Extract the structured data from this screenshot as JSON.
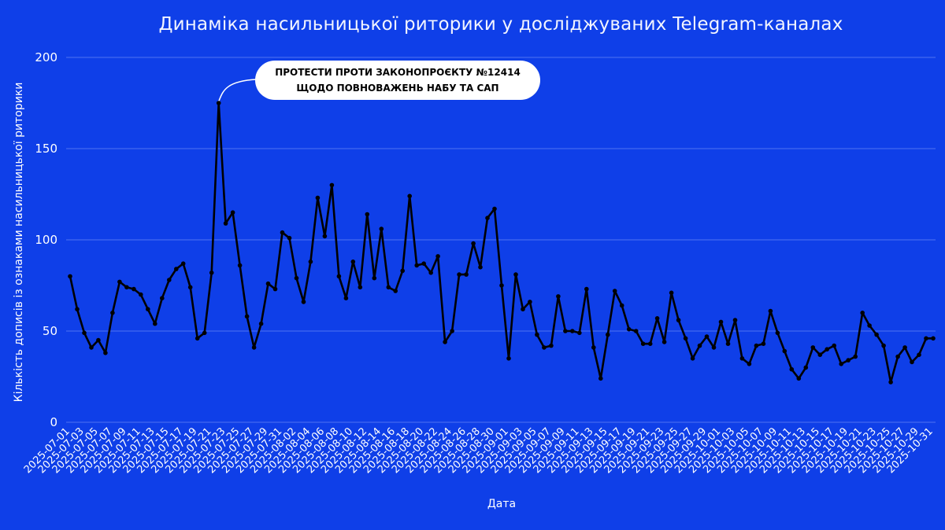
{
  "chart_data": {
    "type": "line",
    "title": "Динаміка насильницької риторики у досліджуваних Telegram-каналах",
    "xlabel": "Дата",
    "ylabel": "Кількість дописів із ознаками насильницької риторики",
    "ylim": [
      0,
      200
    ],
    "yticks": [
      0,
      50,
      100,
      150,
      200
    ],
    "grid": true,
    "series_color": "#000000",
    "background_color": "#0f3fe8",
    "annotation": {
      "line1": "ПРОТЕСТИ ПРОТИ ЗАКОНОПРОЄКТУ №12414",
      "line2": "ЩОДО ПОВНОВАЖЕНЬ НАБУ ТА САП",
      "date": "2025-07-22",
      "value": 175
    },
    "x": [
      "2025-07-01",
      "2025-07-02",
      "2025-07-03",
      "2025-07-04",
      "2025-07-05",
      "2025-07-06",
      "2025-07-07",
      "2025-07-08",
      "2025-07-09",
      "2025-07-10",
      "2025-07-11",
      "2025-07-12",
      "2025-07-13",
      "2025-07-14",
      "2025-07-15",
      "2025-07-16",
      "2025-07-17",
      "2025-07-18",
      "2025-07-19",
      "2025-07-20",
      "2025-07-21",
      "2025-07-22",
      "2025-07-23",
      "2025-07-24",
      "2025-07-25",
      "2025-07-26",
      "2025-07-27",
      "2025-07-28",
      "2025-07-29",
      "2025-07-30",
      "2025-07-31",
      "2025-08-01",
      "2025-08-02",
      "2025-08-03",
      "2025-08-04",
      "2025-08-05",
      "2025-08-06",
      "2025-08-07",
      "2025-08-08",
      "2025-08-09",
      "2025-08-10",
      "2025-08-11",
      "2025-08-12",
      "2025-08-13",
      "2025-08-14",
      "2025-08-15",
      "2025-08-16",
      "2025-08-17",
      "2025-08-18",
      "2025-08-19",
      "2025-08-20",
      "2025-08-21",
      "2025-08-22",
      "2025-08-23",
      "2025-08-24",
      "2025-08-25",
      "2025-08-26",
      "2025-08-27",
      "2025-08-28",
      "2025-08-29",
      "2025-08-30",
      "2025-08-31",
      "2025-09-01",
      "2025-09-02",
      "2025-09-03",
      "2025-09-04",
      "2025-09-05",
      "2025-09-06",
      "2025-09-07",
      "2025-09-08",
      "2025-09-09",
      "2025-09-10",
      "2025-09-11",
      "2025-09-12",
      "2025-09-13",
      "2025-09-14",
      "2025-09-15",
      "2025-09-16",
      "2025-09-17",
      "2025-09-18",
      "2025-09-19",
      "2025-09-20",
      "2025-09-21",
      "2025-09-22",
      "2025-09-23",
      "2025-09-24",
      "2025-09-25",
      "2025-09-26",
      "2025-09-27",
      "2025-09-28",
      "2025-09-29",
      "2025-09-30",
      "2025-10-01",
      "2025-10-02",
      "2025-10-03",
      "2025-10-04",
      "2025-10-05",
      "2025-10-06",
      "2025-10-07",
      "2025-10-08",
      "2025-10-09",
      "2025-10-10",
      "2025-10-11",
      "2025-10-12",
      "2025-10-13",
      "2025-10-14",
      "2025-10-15",
      "2025-10-16",
      "2025-10-17",
      "2025-10-18",
      "2025-10-19",
      "2025-10-20",
      "2025-10-21",
      "2025-10-22",
      "2025-10-23",
      "2025-10-24",
      "2025-10-25",
      "2025-10-26",
      "2025-10-27",
      "2025-10-28",
      "2025-10-29",
      "2025-10-30",
      "2025-10-31"
    ],
    "xticks": [
      "2025-07-01",
      "2025-07-03",
      "2025-07-05",
      "2025-07-07",
      "2025-07-09",
      "2025-07-11",
      "2025-07-13",
      "2025-07-15",
      "2025-07-17",
      "2025-07-19",
      "2025-07-21",
      "2025-07-23",
      "2025-07-25",
      "2025-07-27",
      "2025-07-29",
      "2025-07-31",
      "2025-08-02",
      "2025-08-04",
      "2025-08-06",
      "2025-08-08",
      "2025-08-10",
      "2025-08-12",
      "2025-08-14",
      "2025-08-16",
      "2025-08-18",
      "2025-08-20",
      "2025-08-22",
      "2025-08-24",
      "2025-08-26",
      "2025-08-28",
      "2025-08-30",
      "2025-09-01",
      "2025-09-03",
      "2025-09-05",
      "2025-09-07",
      "2025-09-09",
      "2025-09-11",
      "2025-09-13",
      "2025-09-15",
      "2025-09-17",
      "2025-09-19",
      "2025-09-21",
      "2025-09-23",
      "2025-09-25",
      "2025-09-27",
      "2025-09-29",
      "2025-10-01",
      "2025-10-03",
      "2025-10-05",
      "2025-10-07",
      "2025-10-09",
      "2025-10-11",
      "2025-10-13",
      "2025-10-15",
      "2025-10-17",
      "2025-10-19",
      "2025-10-21",
      "2025-10-23",
      "2025-10-25",
      "2025-10-27",
      "2025-10-29",
      "2025-10-31"
    ],
    "series": [
      {
        "values": [
          80,
          62,
          49,
          41,
          45,
          38,
          60,
          77,
          74,
          73,
          70,
          62,
          54,
          68,
          78,
          84,
          87,
          74,
          46,
          49,
          82,
          175,
          109,
          115,
          86,
          58,
          41,
          54,
          76,
          73,
          104,
          101,
          79,
          66,
          88,
          123,
          102,
          130,
          80,
          68,
          88,
          74,
          114,
          79,
          106,
          74,
          72,
          83,
          124,
          86,
          87,
          82,
          91,
          44,
          50,
          81,
          81,
          98,
          85,
          112,
          117,
          75,
          35,
          81,
          62,
          66,
          48,
          41,
          42,
          69,
          50,
          50,
          49,
          73,
          41,
          24,
          48,
          72,
          64,
          51,
          50,
          43,
          43,
          57,
          44,
          71,
          56,
          46,
          35,
          42,
          47,
          41,
          55,
          43,
          56,
          35,
          32,
          42,
          43,
          61,
          49,
          39,
          29,
          24,
          30,
          41,
          37,
          40,
          42,
          32,
          34,
          36,
          60,
          53,
          48,
          42,
          22,
          36,
          41,
          33,
          37,
          46,
          46
        ]
      }
    ]
  }
}
